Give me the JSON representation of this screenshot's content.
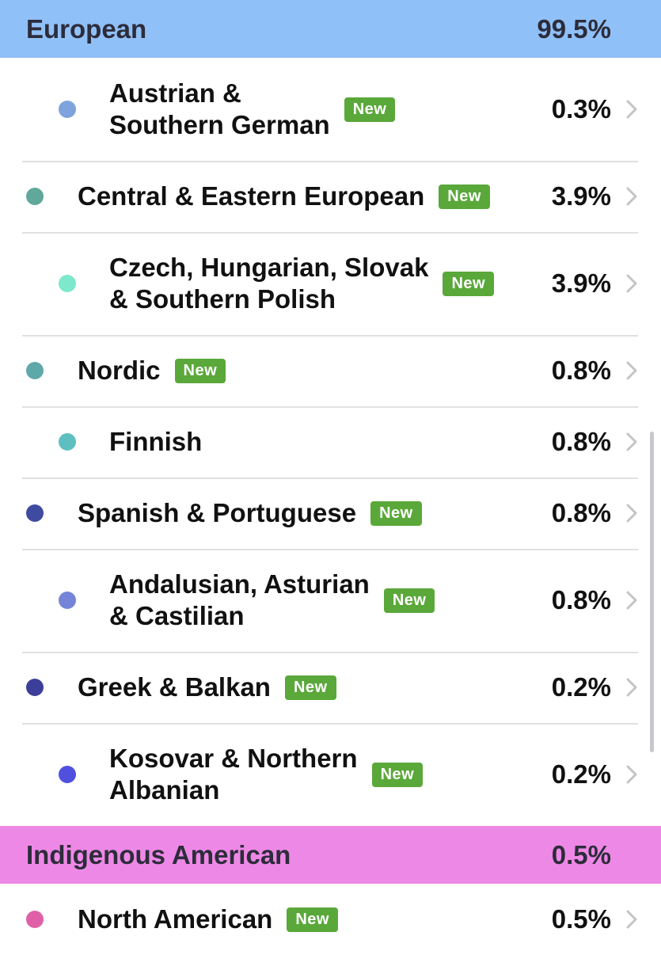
{
  "sections": [
    {
      "title": "European",
      "percent": "99.5%",
      "color": "#90c0f8",
      "rows": [
        {
          "label_lines": [
            "Austrian &",
            "Southern German"
          ],
          "level": 1,
          "dot_color": "#7fa3dc",
          "badge": "New",
          "percent": "0.3%"
        },
        {
          "label_lines": [
            "Central & Eastern European"
          ],
          "level": 0,
          "dot_color": "#5fa89a",
          "badge": "New",
          "percent": "3.9%"
        },
        {
          "label_lines": [
            "Czech, Hungarian, Slovak",
            "& Southern Polish"
          ],
          "level": 1,
          "dot_color": "#7de8cc",
          "badge": "New",
          "percent": "3.9%"
        },
        {
          "label_lines": [
            "Nordic"
          ],
          "level": 0,
          "dot_color": "#5fa8aa",
          "badge": "New",
          "percent": "0.8%"
        },
        {
          "label_lines": [
            "Finnish"
          ],
          "level": 1,
          "dot_color": "#5ebfc0",
          "percent": "0.8%"
        },
        {
          "label_lines": [
            "Spanish & Portuguese"
          ],
          "level": 0,
          "dot_color": "#3f4ba0",
          "badge": "New",
          "percent": "0.8%"
        },
        {
          "label_lines": [
            "Andalusian, Asturian",
            "& Castilian"
          ],
          "level": 1,
          "dot_color": "#7484d8",
          "badge": "New",
          "percent": "0.8%"
        },
        {
          "label_lines": [
            "Greek & Balkan"
          ],
          "level": 0,
          "dot_color": "#3c3f9a",
          "badge": "New",
          "percent": "0.2%"
        },
        {
          "label_lines": [
            "Kosovar & Northern",
            "Albanian"
          ],
          "level": 1,
          "dot_color": "#5050e0",
          "badge": "New",
          "percent": "0.2%"
        }
      ]
    },
    {
      "title": "Indigenous American",
      "percent": "0.5%",
      "color": "#ee88e6",
      "rows": [
        {
          "label_lines": [
            "North American"
          ],
          "level": 0,
          "dot_color": "#e060a8",
          "badge": "New",
          "percent": "0.5%"
        }
      ]
    }
  ]
}
